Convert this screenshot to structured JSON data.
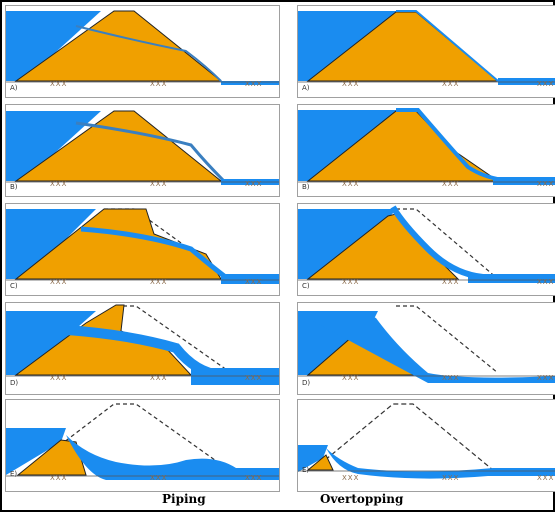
{
  "columns": [
    {
      "title": "Piping",
      "panels": [
        {
          "label": "A)"
        },
        {
          "label": "B)"
        },
        {
          "label": "C)"
        },
        {
          "label": "D)"
        },
        {
          "label": "E)"
        }
      ]
    },
    {
      "title": "Overtopping",
      "panels": [
        {
          "label": "A)"
        },
        {
          "label": "B)"
        },
        {
          "label": "C)"
        },
        {
          "label": "D)"
        },
        {
          "label": "E)"
        }
      ]
    }
  ],
  "ground_marks": [
    "XXX",
    "XXX",
    "XXX"
  ],
  "colors": {
    "water": "#1a8cf0",
    "soil": "#f0a000",
    "outline": "#222222",
    "dashed": "#333333",
    "frame": "#000000"
  }
}
